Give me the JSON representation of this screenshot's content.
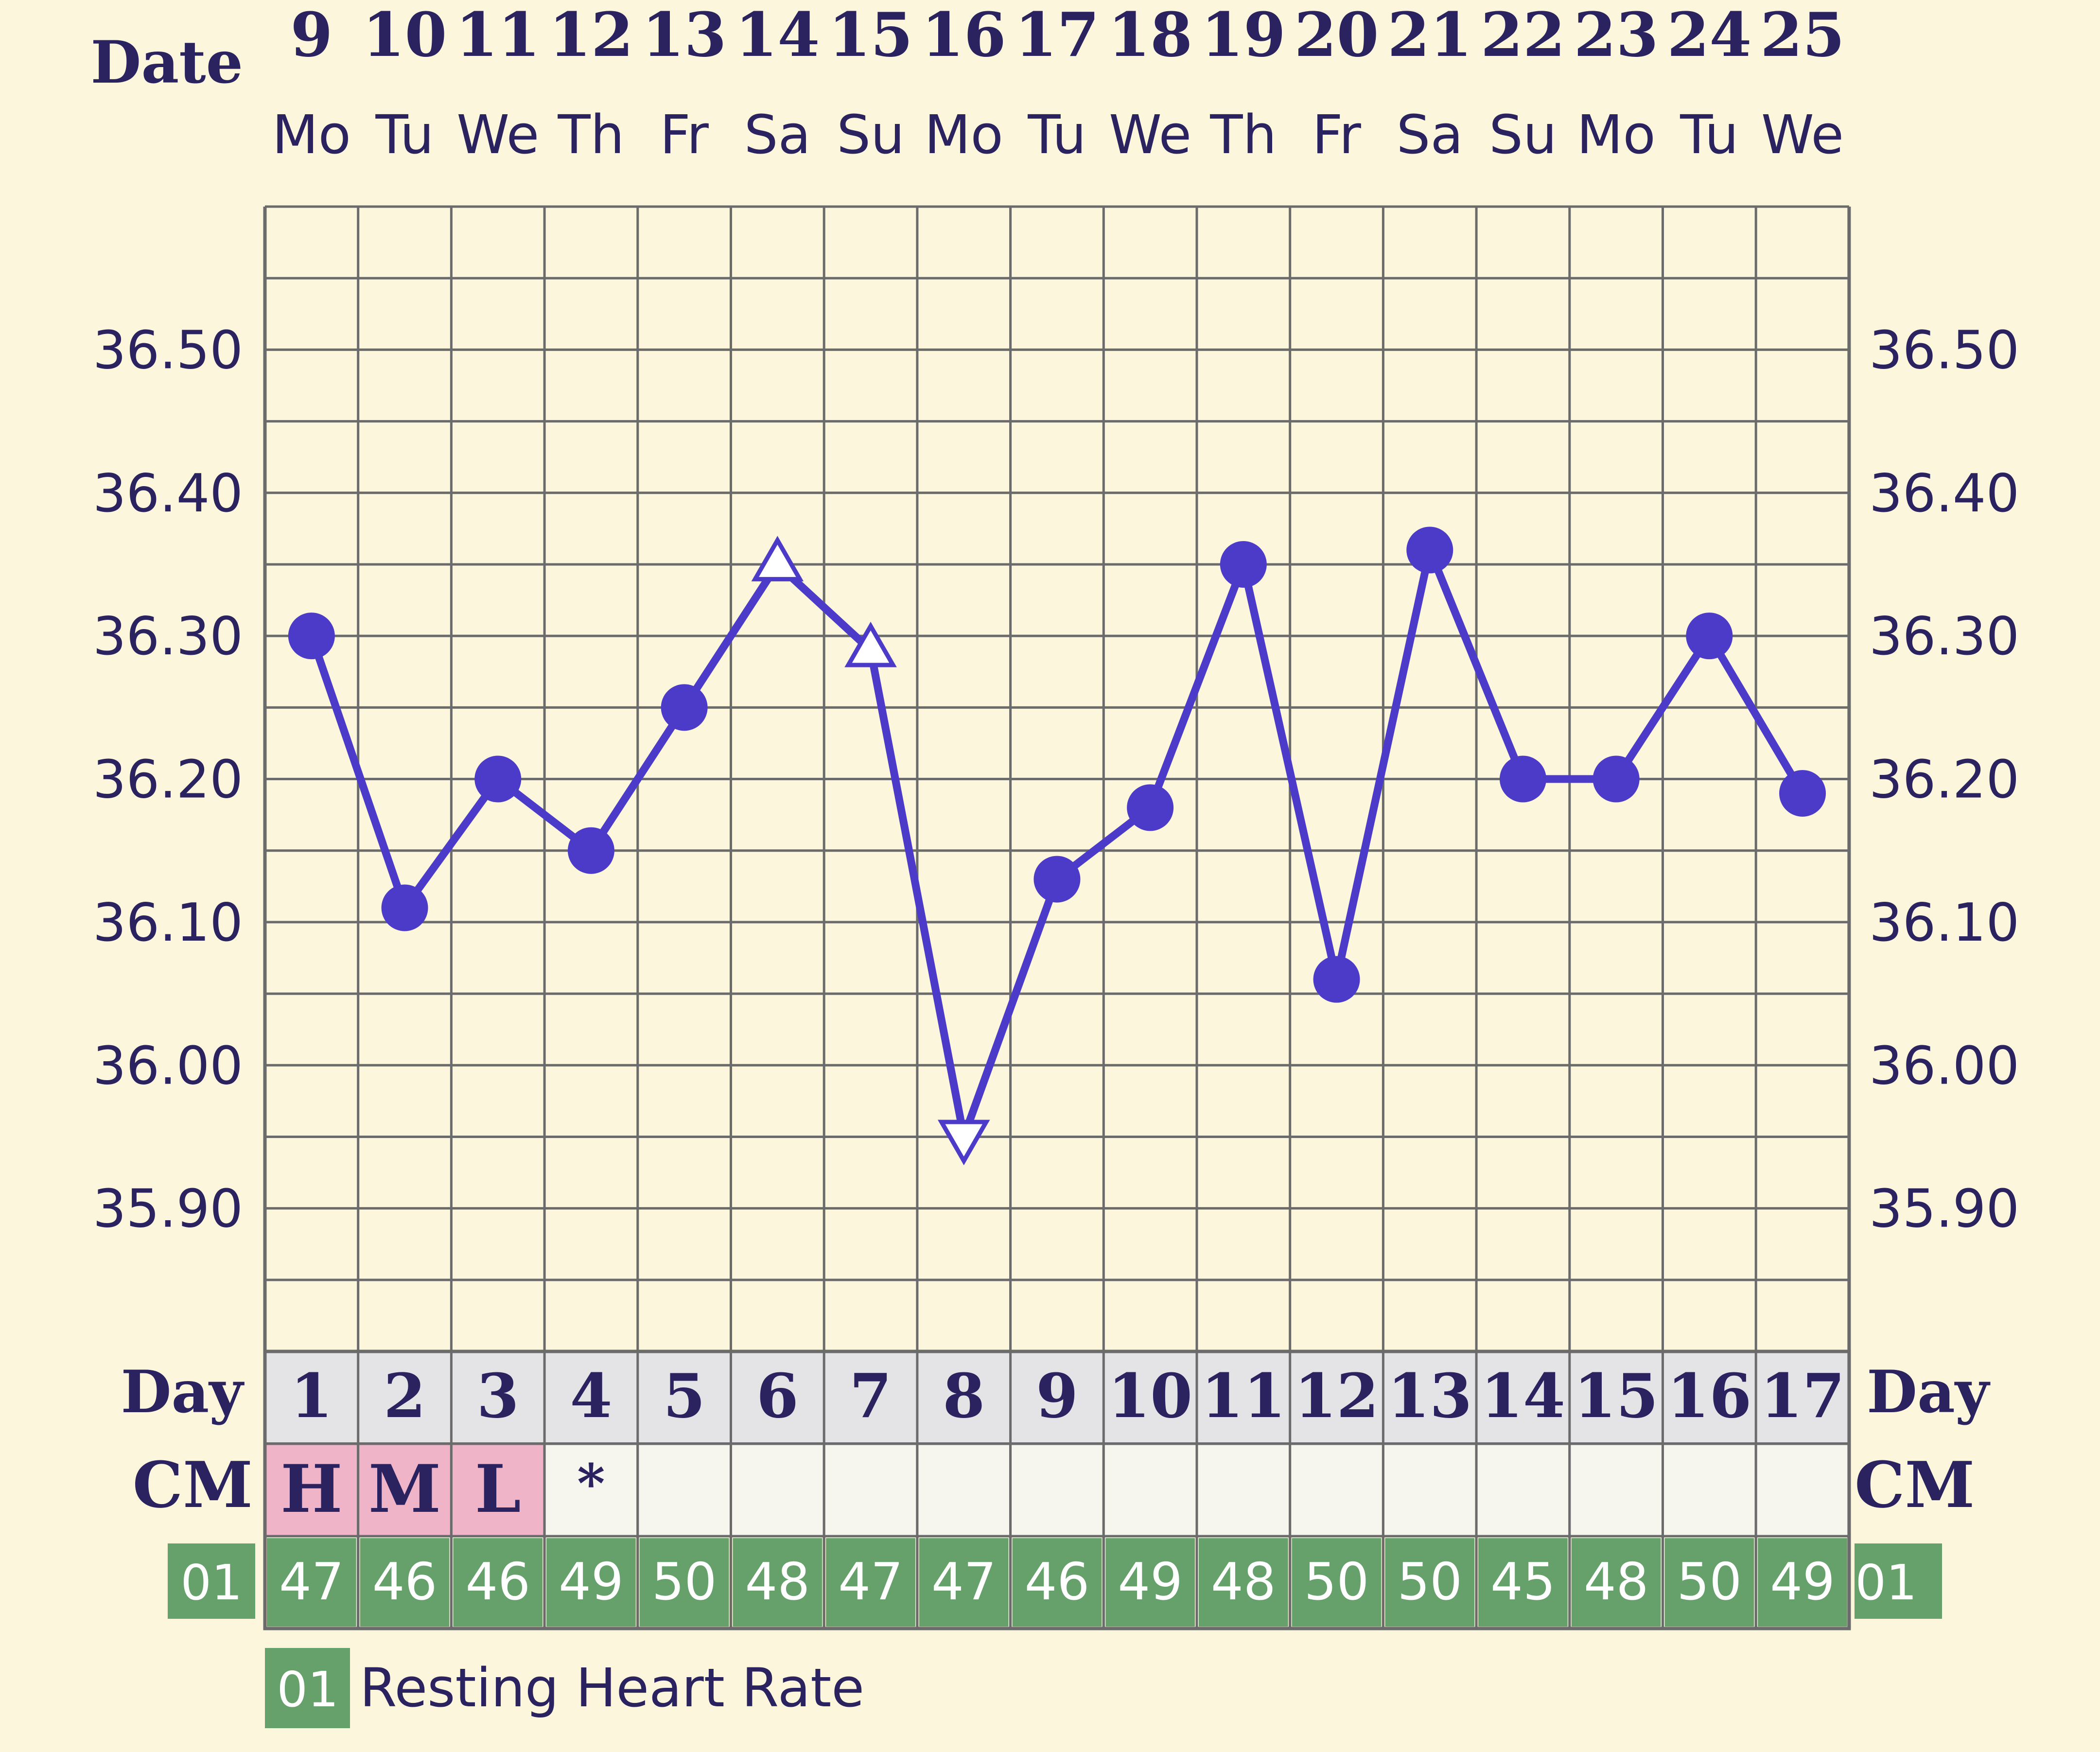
{
  "chart_data": {
    "type": "line",
    "header_label": "Date",
    "dates": [
      "9",
      "10",
      "11",
      "12",
      "13",
      "14",
      "15",
      "16",
      "17",
      "18",
      "19",
      "20",
      "21",
      "22",
      "23",
      "24",
      "25"
    ],
    "weekdays": [
      "Mo",
      "Tu",
      "We",
      "Th",
      "Fr",
      "Sa",
      "Su",
      "Mo",
      "Tu",
      "We",
      "Th",
      "Fr",
      "Sa",
      "Su",
      "Mo",
      "Tu",
      "We"
    ],
    "y_tick_labels": [
      "36.50",
      "36.40",
      "36.30",
      "36.20",
      "36.10",
      "36.00",
      "35.90"
    ],
    "y_ticks": [
      36.5,
      36.4,
      36.3,
      36.2,
      36.1,
      36.0,
      35.9
    ],
    "ylim": [
      35.8,
      36.6
    ],
    "grid": true,
    "series": [
      {
        "values": [
          36.3,
          36.11,
          36.2,
          36.15,
          36.25,
          36.35,
          36.29,
          35.95,
          36.13,
          36.18,
          36.35,
          36.06,
          36.36,
          36.2,
          36.2,
          36.3,
          36.19
        ],
        "markers": [
          "dot",
          "dot",
          "dot",
          "dot",
          "dot",
          "tri-up",
          "tri-up",
          "tri-down",
          "dot",
          "dot",
          "dot",
          "dot",
          "dot",
          "dot",
          "dot",
          "dot",
          "dot"
        ]
      }
    ],
    "day_label": "Day",
    "days": [
      "1",
      "2",
      "3",
      "4",
      "5",
      "6",
      "7",
      "8",
      "9",
      "10",
      "11",
      "12",
      "13",
      "14",
      "15",
      "16",
      "17"
    ],
    "cm_label": "CM",
    "cm": [
      "H",
      "M",
      "L",
      "*",
      "",
      "",
      "",
      "",
      "",
      "",
      "",
      "",
      "",
      "",
      "",
      "",
      ""
    ],
    "rhr_badge": "01",
    "resting_heart_rate": [
      "47",
      "46",
      "46",
      "49",
      "50",
      "48",
      "47",
      "47",
      "46",
      "49",
      "48",
      "50",
      "50",
      "45",
      "48",
      "50",
      "49"
    ],
    "legend": {
      "badge": "01",
      "label": "Resting Heart Rate"
    },
    "colors": {
      "background": "#fbf6dc",
      "line": "#4b3bc8",
      "text": "#2b2260",
      "grid": "#6b6b6b",
      "day_row": "#e4e4e6",
      "cm_fill": "#f0b4c8",
      "cm_empty": "#f6f6ee",
      "rhr": "#66a06a"
    }
  }
}
